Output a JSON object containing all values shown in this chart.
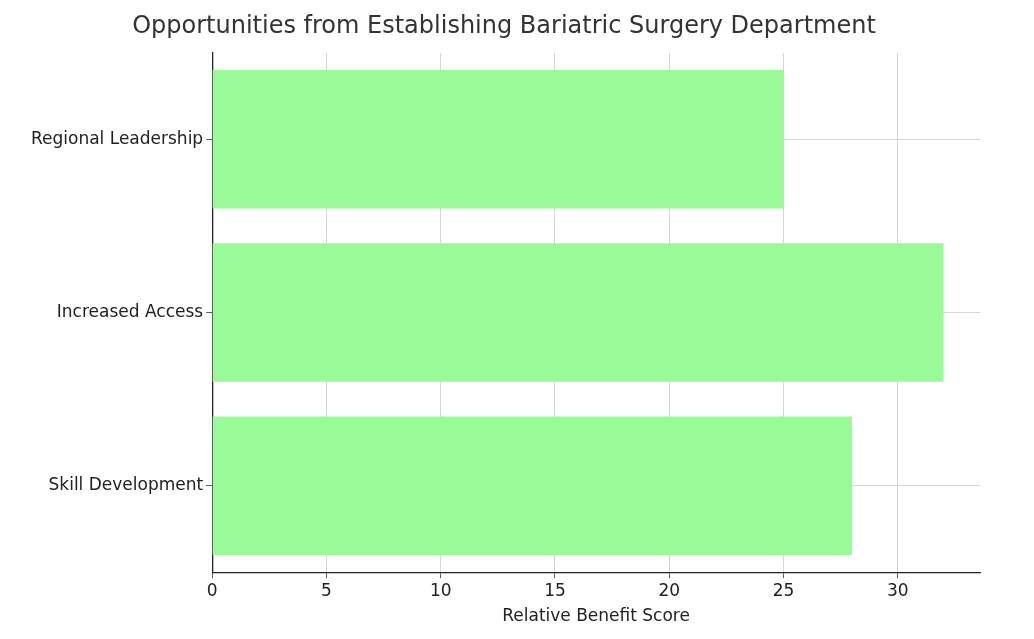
{
  "chart_data": {
    "type": "bar",
    "orientation": "horizontal",
    "title": "Opportunities from Establishing Bariatric Surgery Department",
    "xlabel": "Relative Benefit Score",
    "categories": [
      "Regional Leadership",
      "Increased Access",
      "Skill Development"
    ],
    "values": [
      25,
      32,
      28
    ],
    "color": "#98fb98",
    "xlim": [
      0,
      33.6
    ],
    "xticks": [
      0,
      5,
      10,
      15,
      20,
      25,
      30
    ],
    "grid": true,
    "legend": false
  }
}
